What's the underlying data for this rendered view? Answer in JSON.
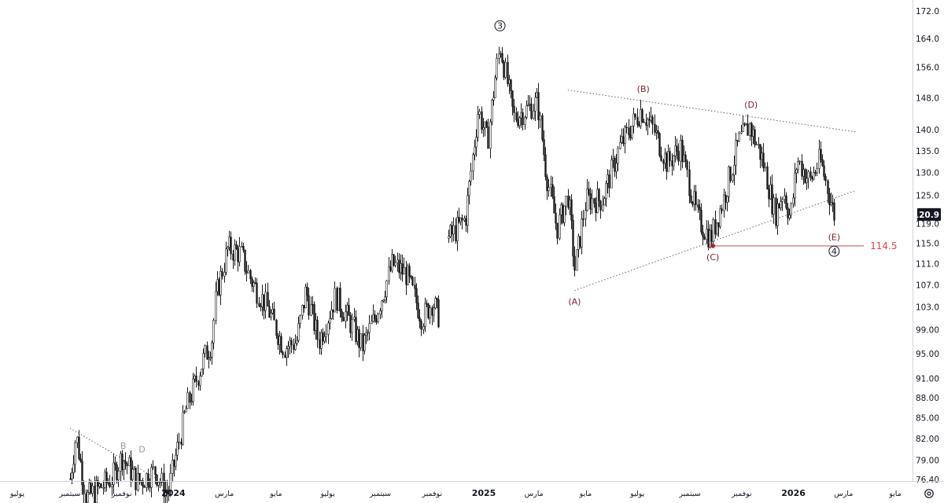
{
  "chart_data": {
    "type": "candlestick",
    "y_scale": "log",
    "ylim": [
      76.4,
      172.0
    ],
    "y_ticks": [
      "172.0",
      "164.0",
      "156.0",
      "148.0",
      "140.0",
      "135.0",
      "130.0",
      "125.0",
      "119.0",
      "115.0",
      "111.0",
      "107.0",
      "103.0",
      "99.00",
      "95.00",
      "91.00",
      "88.00",
      "85.00",
      "82.00",
      "79.00",
      "76.40"
    ],
    "last_price": "120.9",
    "x_ticks": [
      {
        "label": "يوليو",
        "date": "2023-07-01"
      },
      {
        "label": "سبتمبر",
        "date": "2023-09-01"
      },
      {
        "label": "نوفمبر",
        "date": "2023-11-01"
      },
      {
        "label": "2024",
        "date": "2024-01-01",
        "year": true
      },
      {
        "label": "مارس",
        "date": "2024-03-01"
      },
      {
        "label": "مايو",
        "date": "2024-05-01"
      },
      {
        "label": "يوليو",
        "date": "2024-07-01"
      },
      {
        "label": "سبتمبر",
        "date": "2024-09-01"
      },
      {
        "label": "نوفمبر",
        "date": "2024-11-01"
      },
      {
        "label": "2025",
        "date": "2025-01-01",
        "year": true
      },
      {
        "label": "مارس",
        "date": "2025-03-01"
      },
      {
        "label": "مايو",
        "date": "2025-05-01"
      },
      {
        "label": "يوليو",
        "date": "2025-07-01"
      },
      {
        "label": "سبتمبر",
        "date": "2025-09-01"
      },
      {
        "label": "نوفمبر",
        "date": "2025-11-01"
      },
      {
        "label": "2026",
        "date": "2026-01-01",
        "year": true
      },
      {
        "label": "مارس",
        "date": "2026-03-01"
      },
      {
        "label": "مايو",
        "date": "2026-05-01"
      }
    ],
    "price_path": [
      {
        "date": "2023-09-01",
        "price": 76.5
      },
      {
        "date": "2023-09-08",
        "price": 82.5
      },
      {
        "date": "2023-09-20",
        "price": 74.0
      },
      {
        "date": "2023-10-20",
        "price": 76.5
      },
      {
        "date": "2023-11-01",
        "price": 79.5
      },
      {
        "date": "2023-11-20",
        "price": 76.0
      },
      {
        "date": "2023-12-10",
        "price": 77.5
      },
      {
        "date": "2023-12-25",
        "price": 74.5
      },
      {
        "date": "2024-01-15",
        "price": 86.0
      },
      {
        "date": "2024-02-05",
        "price": 94.0
      },
      {
        "date": "2024-02-15",
        "price": 97.0
      },
      {
        "date": "2024-02-20",
        "price": 105.0
      },
      {
        "date": "2024-03-05",
        "price": 114.0
      },
      {
        "date": "2024-03-20",
        "price": 113.0
      },
      {
        "date": "2024-04-01",
        "price": 108.0
      },
      {
        "date": "2024-04-20",
        "price": 103.0
      },
      {
        "date": "2024-05-10",
        "price": 96.0
      },
      {
        "date": "2024-05-25",
        "price": 97.0
      },
      {
        "date": "2024-06-05",
        "price": 106.0
      },
      {
        "date": "2024-06-20",
        "price": 97.0
      },
      {
        "date": "2024-07-10",
        "price": 105.0
      },
      {
        "date": "2024-08-01",
        "price": 99.0
      },
      {
        "date": "2024-08-10",
        "price": 96.0
      },
      {
        "date": "2024-08-25",
        "price": 101.0
      },
      {
        "date": "2024-09-15",
        "price": 111.0
      },
      {
        "date": "2024-10-01",
        "price": 109.0
      },
      {
        "date": "2024-10-20",
        "price": 101.0
      },
      {
        "date": "2024-11-01",
        "price": 104.0
      },
      {
        "date": "2024-11-10",
        "price": 101.0
      }
    ],
    "price_path_2": [
      {
        "date": "2024-11-20",
        "price": 116.0
      },
      {
        "date": "2024-12-10",
        "price": 120.0
      },
      {
        "date": "2024-12-25",
        "price": 145.0
      },
      {
        "date": "2025-01-05",
        "price": 137.0
      },
      {
        "date": "2025-01-15",
        "price": 155.0
      },
      {
        "date": "2025-01-20",
        "price": 162.0
      },
      {
        "date": "2025-02-05",
        "price": 143.0
      },
      {
        "date": "2025-02-20",
        "price": 145.0
      },
      {
        "date": "2025-03-05",
        "price": 147.0
      },
      {
        "date": "2025-03-15",
        "price": 130.0
      },
      {
        "date": "2025-03-28",
        "price": 118.0
      },
      {
        "date": "2025-04-10",
        "price": 125.0
      },
      {
        "date": "2025-04-18",
        "price": 110.0
      },
      {
        "date": "2025-05-01",
        "price": 124.0
      },
      {
        "date": "2025-05-20",
        "price": 124.0
      },
      {
        "date": "2025-06-10",
        "price": 136.0
      },
      {
        "date": "2025-07-05",
        "price": 145.0
      },
      {
        "date": "2025-07-20",
        "price": 140.0
      },
      {
        "date": "2025-08-05",
        "price": 132.0
      },
      {
        "date": "2025-08-20",
        "price": 136.0
      },
      {
        "date": "2025-09-10",
        "price": 120.0
      },
      {
        "date": "2025-09-25",
        "price": 116.0
      },
      {
        "date": "2025-10-10",
        "price": 124.0
      },
      {
        "date": "2025-10-28",
        "price": 137.0
      },
      {
        "date": "2025-11-10",
        "price": 141.0
      },
      {
        "date": "2025-11-25",
        "price": 133.0
      },
      {
        "date": "2025-12-10",
        "price": 121.0
      },
      {
        "date": "2025-12-20",
        "price": 126.0
      },
      {
        "date": "2025-12-28",
        "price": 120.0
      },
      {
        "date": "2026-01-05",
        "price": 133.0
      },
      {
        "date": "2026-01-20",
        "price": 128.0
      },
      {
        "date": "2026-02-01",
        "price": 133.0
      },
      {
        "date": "2026-02-12",
        "price": 125.0
      },
      {
        "date": "2026-02-18",
        "price": 120.9
      }
    ],
    "wave_points": [
      {
        "label": "③",
        "date": "2025-01-20",
        "price": 164.5,
        "major": true,
        "pos": "above"
      },
      {
        "label": "(A)",
        "date": "2025-04-18",
        "price": 106.0,
        "pos": "below"
      },
      {
        "label": "(B)",
        "date": "2025-07-08",
        "price": 147.5,
        "pos": "above"
      },
      {
        "label": "(C)",
        "date": "2025-09-28",
        "price": 114.5,
        "pos": "below",
        "dot": true
      },
      {
        "label": "(D)",
        "date": "2025-11-12",
        "price": 143.5,
        "pos": "above"
      },
      {
        "label": "(E)",
        "date": "2026-02-18",
        "price": 118.5,
        "pos": "below"
      },
      {
        "label": "④",
        "date": "2026-02-18",
        "price": 115.0,
        "major": true,
        "pos": "below2"
      },
      {
        "label": "B",
        "date": "2023-11-03",
        "price": 79.5,
        "grey": true,
        "pos": "above"
      },
      {
        "label": "D",
        "date": "2023-11-25",
        "price": 79.0,
        "grey": true,
        "pos": "above"
      }
    ],
    "trendlines": [
      {
        "from": {
          "date": "2025-04-18",
          "price": 106.0
        },
        "to": {
          "date": "2026-03-15",
          "price": 126.0
        },
        "style": "dotted"
      },
      {
        "from": {
          "date": "2025-04-10",
          "price": 150.0
        },
        "to": {
          "date": "2026-03-15",
          "price": 139.5
        },
        "style": "dotted"
      },
      {
        "from": {
          "date": "2023-09-01",
          "price": 83.5
        },
        "to": {
          "date": "2023-12-20",
          "price": 76.0
        },
        "style": "dotted"
      }
    ],
    "level": {
      "value": 114.5,
      "label": "114.5",
      "from": "2025-09-28",
      "to": "2026-03-25",
      "color": "#d9434e"
    }
  },
  "toolbar": {
    "settings_icon": "gear-icon"
  }
}
